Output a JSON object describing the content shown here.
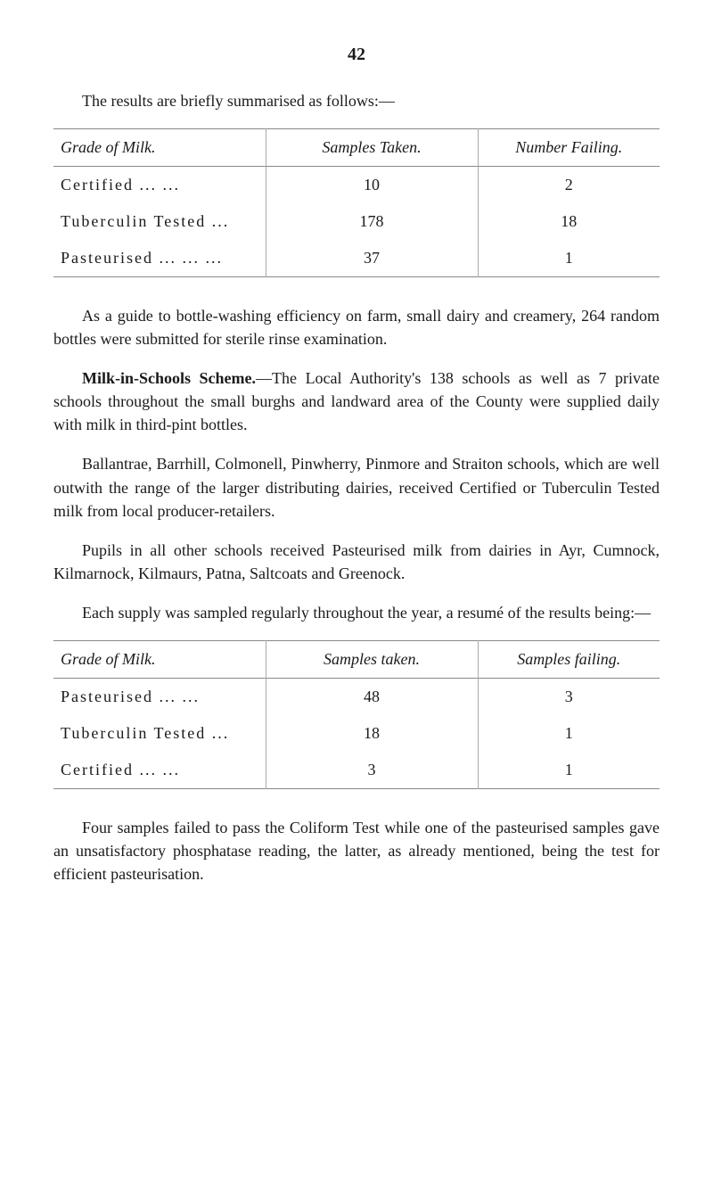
{
  "page_number": "42",
  "intro": "The results are briefly summarised as follows:—",
  "table1": {
    "headers": {
      "grade": "Grade of Milk.",
      "samples": "Samples Taken.",
      "failing": "Number Failing."
    },
    "rows": [
      {
        "grade": "Certified         ...   ...",
        "samples": "10",
        "failing": "2"
      },
      {
        "grade": "Tuberculin Tested  ...",
        "samples": "178",
        "failing": "18"
      },
      {
        "grade": "Pasteurised ...   ...   ...",
        "samples": "37",
        "failing": "1"
      }
    ]
  },
  "para1": "As a guide to bottle-washing efficiency on farm, small dairy and creamery, 264 random bottles were submitted for sterile rinse examination.",
  "para2_bold": "Milk-in-Schools Scheme.",
  "para2_rest": "—The Local Authority's 138 schools as well as 7 private schools throughout the small burghs and landward area of the County were supplied daily with milk in third-pint bottles.",
  "para3": "Ballantrae, Barrhill, Colmonell, Pinwherry, Pinmore and Straiton schools, which are well outwith the range of the larger distributing dairies, received Certified or Tuberculin Tested milk from local producer-retailers.",
  "para4": "Pupils in all other schools received Pasteurised milk from dairies in Ayr, Cumnock, Kilmarnock, Kilmaurs, Patna, Saltcoats and Greenock.",
  "para5": "Each supply was sampled regularly throughout the year, a resumé of the results being:—",
  "table2": {
    "headers": {
      "grade": "Grade of Milk.",
      "samples": "Samples taken.",
      "failing": "Samples failing."
    },
    "rows": [
      {
        "grade": "Pasteurised    ...   ...",
        "samples": "48",
        "failing": "3"
      },
      {
        "grade": "Tuberculin Tested  ...",
        "samples": "18",
        "failing": "1"
      },
      {
        "grade": "Certified       ...   ...",
        "samples": "3",
        "failing": "1"
      }
    ]
  },
  "para6": "Four samples failed to pass the Coliform Test while one of the pasteurised samples gave an unsatisfactory phosphatase reading, the latter, as already mentioned, being the test for efficient pasteurisation."
}
